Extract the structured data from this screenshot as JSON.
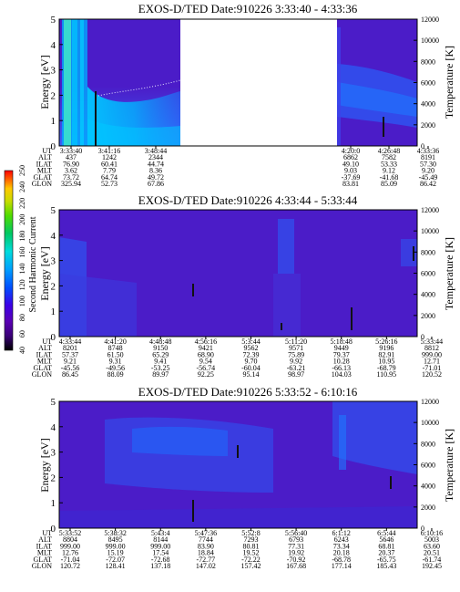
{
  "chart_data": [
    {
      "type": "heatmap",
      "title": "EXOS-D/TED   Date:910226   3:33:40 - 4:33:36",
      "ylabel": "Energy [eV]",
      "ylabel_right": "Temperature [K]",
      "ylim": [
        0,
        5
      ],
      "ylim_right": [
        0,
        12000
      ],
      "yticks": [
        "0",
        "1",
        "2",
        "3",
        "4",
        "5"
      ],
      "yticks_right": [
        "0",
        "2000",
        "4000",
        "6000",
        "8000",
        "10000",
        "12000"
      ],
      "data_gap": [
        "4:14",
        "4:20"
      ],
      "table_labels": [
        "UT",
        "ALT",
        "ILAT",
        "MLT",
        "GLAT",
        "GLON"
      ],
      "table_columns": [
        [
          "3:33:40",
          "437",
          "76.90",
          "3.62",
          "73.72",
          "325.94"
        ],
        [
          "3:41:16",
          "1242",
          "60.41",
          "7.79",
          "64.74",
          "52.73"
        ],
        [
          "3:48:44",
          "2344",
          "44.74",
          "8.36",
          "49.72",
          "67.86"
        ],
        [
          "4:20:0",
          "6862",
          "49.10",
          "9.03",
          "-37.69",
          "83.81"
        ],
        [
          "4:26:48",
          "7582",
          "53.33",
          "9.12",
          "-41.68",
          "85.09"
        ],
        [
          "4:33:36",
          "8191",
          "57.30",
          "9.20",
          "-45.49",
          "86.42"
        ]
      ]
    },
    {
      "type": "heatmap",
      "title": "EXOS-D/TED   Date:910226   4:33:44 - 5:33:44",
      "ylabel": "Energy [eV]",
      "ylabel_right": "Temperature [K]",
      "ylim": [
        0,
        5
      ],
      "ylim_right": [
        0,
        12000
      ],
      "yticks": [
        "0",
        "1",
        "2",
        "3",
        "4",
        "5"
      ],
      "yticks_right": [
        "0",
        "2000",
        "4000",
        "6000",
        "8000",
        "10000",
        "12000"
      ],
      "table_labels": [
        "UT",
        "ALT",
        "ILAT",
        "MLT",
        "GLAT",
        "GLON"
      ],
      "table_columns": [
        [
          "4:33:44",
          "8201",
          "57.37",
          "9.21",
          "-45.56",
          "86.45"
        ],
        [
          "4:41:20",
          "8748",
          "61.50",
          "9.31",
          "-49.56",
          "88.09"
        ],
        [
          "4:48:48",
          "9150",
          "65.29",
          "9.41",
          "-53.25",
          "89.97"
        ],
        [
          "4:56:16",
          "9421",
          "68.90",
          "9.54",
          "-56.74",
          "92.25"
        ],
        [
          "5:3:44",
          "9562",
          "72.39",
          "9.70",
          "-60.04",
          "95.14"
        ],
        [
          "5:11:20",
          "9571",
          "75.89",
          "9.92",
          "-63.21",
          "98.97"
        ],
        [
          "5:18:48",
          "9449",
          "79.37",
          "10.28",
          "-66.13",
          "104.03"
        ],
        [
          "5:26:16",
          "9196",
          "82.91",
          "10.95",
          "-68.79",
          "110.95"
        ],
        [
          "5:33:44",
          "8812",
          "999.00",
          "12.71",
          "-71.01",
          "120.52"
        ]
      ]
    },
    {
      "type": "heatmap",
      "title": "EXOS-D/TED   Date:910226   5:33:52 - 6:10:16",
      "ylabel": "Energy [eV]",
      "ylabel_right": "Temperature [K]",
      "ylim": [
        0,
        5
      ],
      "ylim_right": [
        0,
        12000
      ],
      "yticks": [
        "0",
        "1",
        "2",
        "3",
        "4",
        "5"
      ],
      "yticks_right": [
        "0",
        "2000",
        "4000",
        "6000",
        "8000",
        "10000",
        "12000"
      ],
      "table_labels": [
        "UT",
        "ALT",
        "ILAT",
        "MLT",
        "GLAT",
        "GLON"
      ],
      "table_columns": [
        [
          "5:33:52",
          "8804",
          "999.00",
          "12.76",
          "-71.04",
          "120.72"
        ],
        [
          "5:38:32",
          "8495",
          "999.00",
          "15.19",
          "-72.07",
          "128.41"
        ],
        [
          "5:43:4",
          "8144",
          "999.00",
          "17.54",
          "-72.68",
          "137.18"
        ],
        [
          "5:47:36",
          "7744",
          "83.90",
          "18.84",
          "-72.77",
          "147.02"
        ],
        [
          "5:52:8",
          "7293",
          "80.81",
          "19.52",
          "-72.22",
          "157.42"
        ],
        [
          "5:56:40",
          "6793",
          "77.31",
          "19.92",
          "-70.92",
          "167.68"
        ],
        [
          "6:1:12",
          "6243",
          "73.34",
          "20.18",
          "-68.78",
          "177.14"
        ],
        [
          "6:5:44",
          "5646",
          "68.81",
          "20.37",
          "-65.75",
          "185.43"
        ],
        [
          "6:10:16",
          "5003",
          "63.60",
          "20.51",
          "-61.74",
          "192.45"
        ]
      ]
    }
  ],
  "colorbar": {
    "label": "Second Harmonic Current",
    "ticks": [
      "40",
      "60",
      "80",
      "100",
      "120",
      "140",
      "160",
      "180",
      "200",
      "220",
      "240",
      "250"
    ],
    "colors": [
      "#000000",
      "#3a0078",
      "#5a00b4",
      "#3c00e6",
      "#0050ff",
      "#00a0ff",
      "#00dcdc",
      "#00c864",
      "#50dc00",
      "#c8dc00",
      "#ffc800",
      "#ff5000",
      "#ff0000"
    ]
  },
  "colors": {
    "background_field": "#4b1cc8",
    "bright_band": "#2f52f0",
    "cyan": "#00c8ff",
    "green": "#58e6b0",
    "streak": "#111111"
  }
}
